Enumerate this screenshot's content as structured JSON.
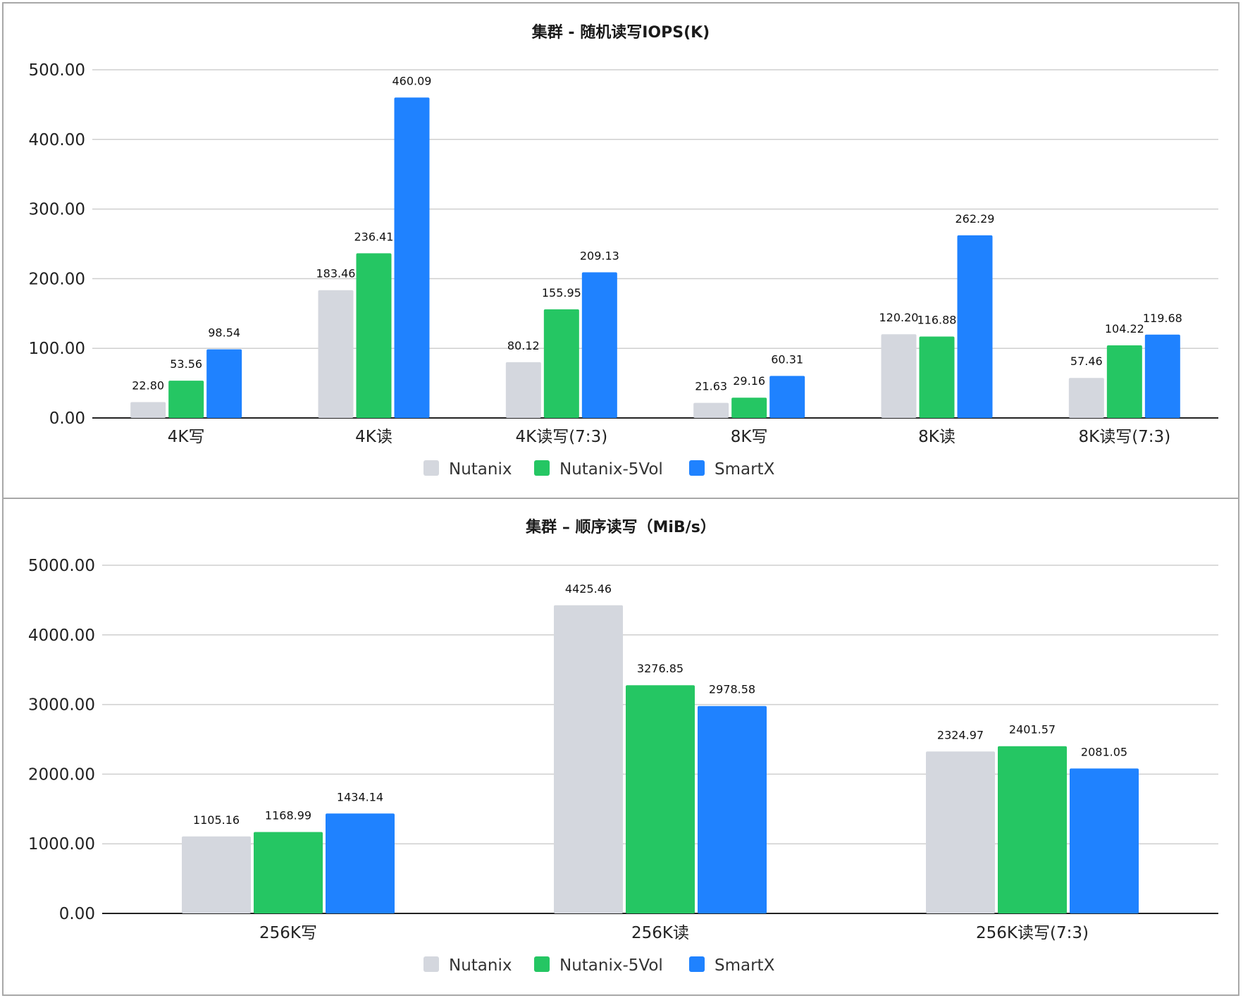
{
  "colors": {
    "Nutanix": "#d4d7de",
    "Nutanix-5Vol": "#25c663",
    "SmartX": "#1f82ff"
  },
  "chart_data": [
    {
      "type": "bar",
      "title": "集群 - 随机读写IOPS(K)",
      "categories": [
        "4K写",
        "4K读",
        "4K读写(7:3)",
        "8K写",
        "8K读",
        "8K读写(7:3)"
      ],
      "series": [
        {
          "name": "Nutanix",
          "values": [
            22.8,
            183.46,
            80.12,
            21.63,
            120.2,
            57.46
          ],
          "labels": [
            "22.80",
            "183.46",
            "80.12",
            "21.63",
            "120.20",
            "57.46"
          ]
        },
        {
          "name": "Nutanix-5Vol",
          "values": [
            53.56,
            236.41,
            155.95,
            29.16,
            116.88,
            104.22
          ],
          "labels": [
            "53.56",
            "236.41",
            "155.95",
            "29.16",
            "116.88",
            "104.22"
          ]
        },
        {
          "name": "SmartX",
          "values": [
            98.54,
            460.09,
            209.13,
            60.31,
            262.29,
            119.68
          ],
          "labels": [
            "98.54",
            "460.09",
            "209.13",
            "60.31",
            "262.29",
            "119.68"
          ]
        }
      ],
      "yticks": [
        "0.00",
        "100.00",
        "200.00",
        "300.00",
        "400.00",
        "500.00"
      ],
      "ylim": [
        0,
        500
      ],
      "grid": true,
      "legend": "bottom"
    },
    {
      "type": "bar",
      "title": "集群 – 顺序读写（MiB/s）",
      "categories": [
        "256K写",
        "256K读",
        "256K读写(7:3)"
      ],
      "series": [
        {
          "name": "Nutanix",
          "values": [
            1105.16,
            4425.46,
            2324.97
          ],
          "labels": [
            "1105.16",
            "4425.46",
            "2324.97"
          ]
        },
        {
          "name": "Nutanix-5Vol",
          "values": [
            1168.99,
            3276.85,
            2401.57
          ],
          "labels": [
            "1168.99",
            "3276.85",
            "2401.57"
          ]
        },
        {
          "name": "SmartX",
          "values": [
            1434.14,
            2978.58,
            2081.05
          ],
          "labels": [
            "1434.14",
            "2978.58",
            "2081.05"
          ]
        }
      ],
      "yticks": [
        "0.00",
        "1000.00",
        "2000.00",
        "3000.00",
        "4000.00",
        "5000.00"
      ],
      "ylim": [
        0,
        5000
      ],
      "grid": true,
      "legend": "bottom"
    }
  ]
}
